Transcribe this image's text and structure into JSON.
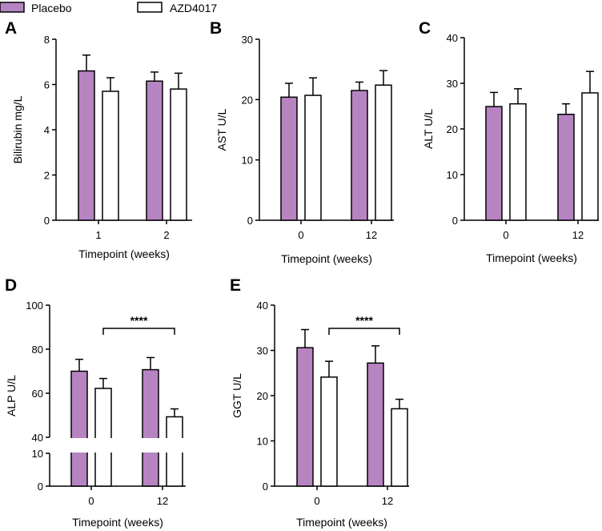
{
  "legend": {
    "placebo": "Placebo",
    "azd": "AZD4017"
  },
  "colors": {
    "placebo": "#b784c2",
    "azd": "#ffffff",
    "stroke": "#000000"
  },
  "chart_data": [
    {
      "panel": "A",
      "type": "bar",
      "ylabel": "Bilirubin mg/L",
      "xlabel": "Timepoint (weeks)",
      "categories": [
        "1",
        "2"
      ],
      "ylim": [
        0,
        8
      ],
      "yticks": [
        0,
        2,
        4,
        6,
        8
      ],
      "series": [
        {
          "name": "Placebo",
          "values": [
            6.6,
            6.15
          ],
          "errors": [
            0.7,
            0.4
          ]
        },
        {
          "name": "AZD4017",
          "values": [
            5.7,
            5.8
          ],
          "errors": [
            0.6,
            0.7
          ]
        }
      ]
    },
    {
      "panel": "B",
      "type": "bar",
      "ylabel": "AST U/L",
      "xlabel": "Timepoint (weeks)",
      "categories": [
        "0",
        "12"
      ],
      "ylim": [
        0,
        30
      ],
      "yticks": [
        0,
        10,
        20,
        30
      ],
      "series": [
        {
          "name": "Placebo",
          "values": [
            20.4,
            21.5
          ],
          "errors": [
            2.3,
            1.4
          ]
        },
        {
          "name": "AZD4017",
          "values": [
            20.7,
            22.4
          ],
          "errors": [
            2.9,
            2.4
          ]
        }
      ]
    },
    {
      "panel": "C",
      "type": "bar",
      "ylabel": "ALT U/L",
      "xlabel": "Timepoint (weeks)",
      "categories": [
        "0",
        "12"
      ],
      "ylim": [
        0,
        40
      ],
      "yticks": [
        0,
        10,
        20,
        30,
        40
      ],
      "series": [
        {
          "name": "Placebo",
          "values": [
            24.9,
            23.2
          ],
          "errors": [
            3.1,
            2.3
          ]
        },
        {
          "name": "AZD4017",
          "values": [
            25.5,
            27.9
          ],
          "errors": [
            3.3,
            4.7
          ]
        }
      ]
    },
    {
      "panel": "D",
      "type": "bar",
      "ylabel": "ALP U/L",
      "xlabel": "Timepoint (weeks)",
      "categories": [
        "0",
        "12"
      ],
      "yticks_upper": [
        40,
        60,
        80,
        100
      ],
      "yticks_lower": [
        0,
        10
      ],
      "broken_axis": {
        "lower": [
          0,
          10
        ],
        "upper": [
          40,
          100
        ]
      },
      "series": [
        {
          "name": "Placebo",
          "values": [
            70,
            70.7
          ],
          "errors": [
            5.4,
            5.5
          ]
        },
        {
          "name": "AZD4017",
          "values": [
            62.2,
            49.3
          ],
          "errors": [
            4.5,
            3.6
          ]
        }
      ],
      "significance": {
        "label": "****",
        "between": [
          "AZD4017 0",
          "AZD4017 12"
        ]
      }
    },
    {
      "panel": "E",
      "type": "bar",
      "ylabel": "GGT U/L",
      "xlabel": "Timepoint (weeks)",
      "categories": [
        "0",
        "12"
      ],
      "ylim": [
        0,
        40
      ],
      "yticks": [
        0,
        10,
        20,
        30,
        40
      ],
      "series": [
        {
          "name": "Placebo",
          "values": [
            30.6,
            27.2
          ],
          "errors": [
            4.0,
            3.8
          ]
        },
        {
          "name": "AZD4017",
          "values": [
            24.1,
            17.1
          ],
          "errors": [
            3.5,
            2.1
          ]
        }
      ],
      "significance": {
        "label": "****",
        "between": [
          "AZD4017 0",
          "AZD4017 12"
        ]
      }
    }
  ]
}
